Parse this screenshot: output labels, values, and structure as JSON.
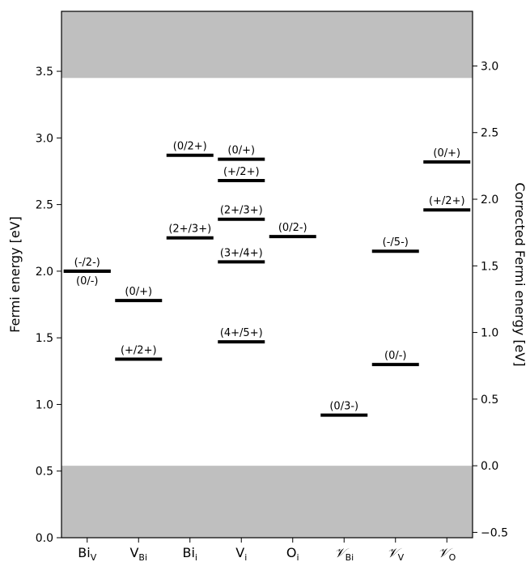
{
  "chart_data": {
    "type": "energy-level-diagram",
    "ylabel": "Fermi energy [eV]",
    "ylabel_right": "Corrected Fermi energy [eV]",
    "ylim": [
      0.0,
      3.95
    ],
    "ylim_right": [
      -0.54,
      3.41
    ],
    "yticks": [
      "0.0",
      "0.5",
      "1.0",
      "1.5",
      "2.0",
      "2.5",
      "3.0",
      "3.5"
    ],
    "yticks_right": [
      "−0.5",
      "0.0",
      "0.5",
      "1.0",
      "1.5",
      "2.0",
      "2.5",
      "3.0"
    ],
    "shaded_bands": [
      {
        "from": 0.0,
        "to": 0.54,
        "color": "#bfbfbf"
      },
      {
        "from": 3.45,
        "to": 3.95,
        "color": "#bfbfbf"
      }
    ],
    "categories": [
      {
        "base": "Bi",
        "sub": "V",
        "script": false
      },
      {
        "base": "V",
        "sub": "Bi",
        "script": false
      },
      {
        "base": "Bi",
        "sub": "i",
        "script": false
      },
      {
        "base": "V",
        "sub": "i",
        "script": false
      },
      {
        "base": "O",
        "sub": "i",
        "script": false
      },
      {
        "base": "𝒱",
        "sub": "Bi",
        "script": true
      },
      {
        "base": "𝒱",
        "sub": "V",
        "script": true
      },
      {
        "base": "𝒱",
        "sub": "O",
        "script": true
      }
    ],
    "levels": [
      {
        "cat": 0,
        "y": 2.0,
        "label": "(-/2-)",
        "label_pos": "above"
      },
      {
        "cat": 0,
        "y": 2.0,
        "label": "(0/-)",
        "label_pos": "below"
      },
      {
        "cat": 1,
        "y": 1.78,
        "label": "(0/+)",
        "label_pos": "above"
      },
      {
        "cat": 1,
        "y": 1.34,
        "label": "(+/2+)",
        "label_pos": "above"
      },
      {
        "cat": 2,
        "y": 2.87,
        "label": "(0/2+)",
        "label_pos": "above"
      },
      {
        "cat": 2,
        "y": 2.25,
        "label": "(2+/3+)",
        "label_pos": "above"
      },
      {
        "cat": 3,
        "y": 2.84,
        "label": "(0/+)",
        "label_pos": "above"
      },
      {
        "cat": 3,
        "y": 2.68,
        "label": "(+/2+)",
        "label_pos": "above"
      },
      {
        "cat": 3,
        "y": 2.39,
        "label": "(2+/3+)",
        "label_pos": "above"
      },
      {
        "cat": 3,
        "y": 2.07,
        "label": "(3+/4+)",
        "label_pos": "above"
      },
      {
        "cat": 3,
        "y": 1.47,
        "label": "(4+/5+)",
        "label_pos": "above"
      },
      {
        "cat": 4,
        "y": 2.26,
        "label": "(0/2-)",
        "label_pos": "above"
      },
      {
        "cat": 5,
        "y": 0.92,
        "label": "(0/3-)",
        "label_pos": "above"
      },
      {
        "cat": 6,
        "y": 2.15,
        "label": "(-/5-)",
        "label_pos": "above"
      },
      {
        "cat": 6,
        "y": 1.3,
        "label": "(0/-)",
        "label_pos": "above"
      },
      {
        "cat": 7,
        "y": 2.82,
        "label": "(0/+)",
        "label_pos": "above"
      },
      {
        "cat": 7,
        "y": 2.46,
        "label": "(+/2+)",
        "label_pos": "above"
      }
    ],
    "grid": false,
    "legend": "none"
  }
}
